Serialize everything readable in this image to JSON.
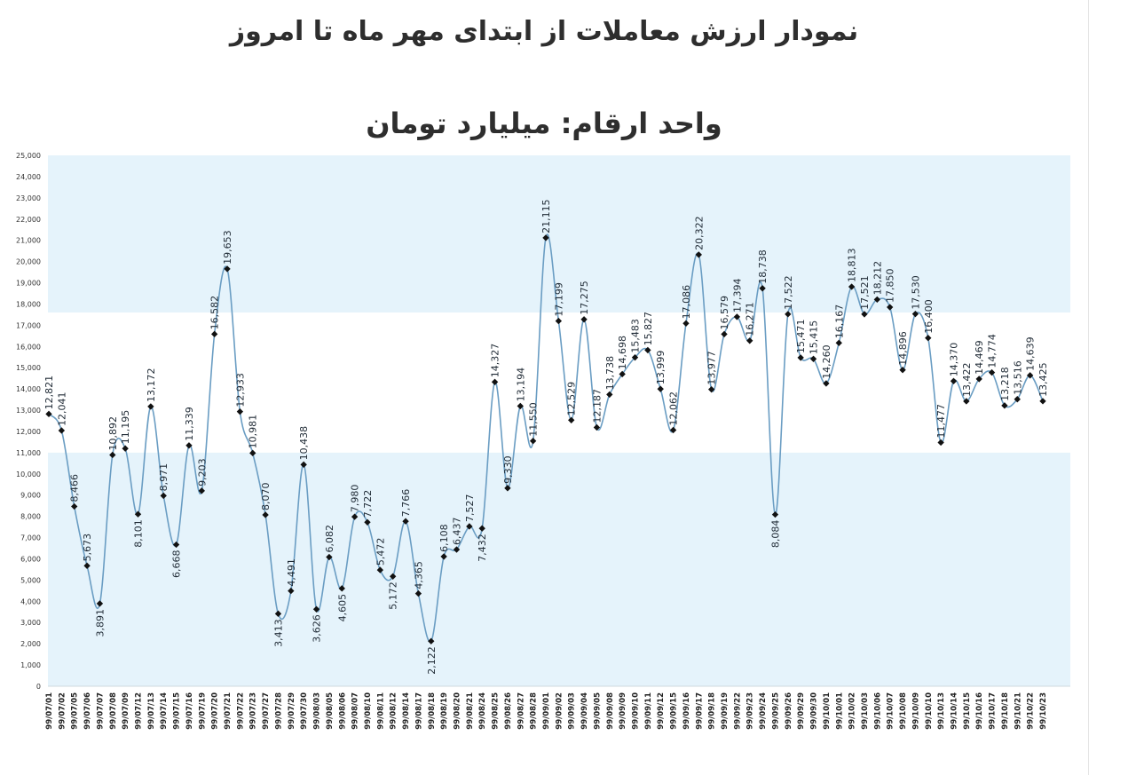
{
  "title": "نمودار ارزش معاملات از ابتدای مهر ماه تا امروز",
  "subtitle": "واحد ارقام: میلیارد تومان",
  "colors": {
    "line": "#6a9dc3",
    "marker": "#111111",
    "band": "#e5f3fb",
    "background": "#ffffff"
  },
  "chart_data": {
    "type": "line",
    "title": "نمودار ارزش معاملات از ابتدای مهر ماه تا امروز",
    "unit": "واحد ارقام: میلیارد تومان",
    "ylim": [
      0,
      25000
    ],
    "ytick_step": 1000,
    "ytick_labels": [
      "0",
      "1,000",
      "2,000",
      "3,000",
      "4,000",
      "5,000",
      "6,000",
      "7,000",
      "8,000",
      "9,000",
      "10,000",
      "11,000",
      "12,000",
      "13,000",
      "14,000",
      "15,000",
      "16,000",
      "17,000",
      "18,000",
      "19,000",
      "20,000",
      "21,000",
      "22,000",
      "23,000",
      "24,000",
      "25,000"
    ],
    "shaded_bands": [
      [
        0,
        11000
      ],
      [
        17600,
        25000
      ]
    ],
    "categories": [
      "99/07/01",
      "99/07/02",
      "99/07/05",
      "99/07/06",
      "99/07/07",
      "99/07/08",
      "99/07/09",
      "99/07/12",
      "99/07/13",
      "99/07/14",
      "99/07/15",
      "99/07/16",
      "99/07/19",
      "99/07/20",
      "99/07/21",
      "99/07/22",
      "99/07/23",
      "99/07/27",
      "99/07/28",
      "99/07/29",
      "99/07/30",
      "99/08/03",
      "99/08/05",
      "99/08/06",
      "99/08/07",
      "99/08/10",
      "99/08/11",
      "99/08/12",
      "99/08/14",
      "99/08/17",
      "99/08/18",
      "99/08/19",
      "99/08/20",
      "99/08/21",
      "99/08/24",
      "99/08/25",
      "99/08/26",
      "99/08/27",
      "99/08/28",
      "99/09/01",
      "99/09/02",
      "99/09/03",
      "99/09/04",
      "99/09/05",
      "99/09/08",
      "99/09/09",
      "99/09/10",
      "99/09/11",
      "99/09/12",
      "99/09/15",
      "99/09/16",
      "99/09/17",
      "99/09/18",
      "99/09/19",
      "99/09/22",
      "99/09/23",
      "99/09/24",
      "99/09/25",
      "99/09/26",
      "99/09/29",
      "99/09/30",
      "99/10/01",
      "99/10/01",
      "99/10/02",
      "99/10/03",
      "99/10/06",
      "99/10/07",
      "99/10/08",
      "99/10/09",
      "99/10/10",
      "99/10/13",
      "99/10/14",
      "99/10/15",
      "99/10/16",
      "99/10/17",
      "99/10/18",
      "99/10/21",
      "99/10/22",
      "99/10/23"
    ],
    "values": [
      12821,
      12041,
      8466,
      5673,
      3891,
      10892,
      11195,
      8101,
      13172,
      8971,
      6668,
      11339,
      9203,
      16582,
      19653,
      12933,
      10981,
      8070,
      3413,
      4491,
      10438,
      3626,
      6082,
      4605,
      7980,
      7722,
      5472,
      5172,
      7766,
      4365,
      2122,
      6108,
      6437,
      7527,
      7432,
      14327,
      9330,
      13194,
      11550,
      21115,
      17199,
      12529,
      17275,
      12187,
      13738,
      14698,
      15483,
      15827,
      13999,
      12062,
      17086,
      20322,
      13977,
      16579,
      17394,
      16271,
      18738,
      8084,
      17522,
      15471,
      15415,
      14260,
      16167,
      18813,
      17521,
      18212,
      17850,
      14896,
      17530,
      16400,
      11477,
      14370,
      13422,
      14469,
      14774,
      13218,
      13516,
      14639,
      13425
    ],
    "labels": [
      "12,821",
      "12,041",
      "8,466",
      "5,673",
      "3,891",
      "10,892",
      "11,195",
      "8,101",
      "13,172",
      "8,971",
      "6,668",
      "11,339",
      "9,203",
      "16,582",
      "19,653",
      "12,933",
      "10,981",
      "8,070",
      "3,413",
      "4,491",
      "10,438",
      "3,626",
      "6,082",
      "4,605",
      "7,980",
      "7,722",
      "5,472",
      "5,172",
      "7,766",
      "4,365",
      "2,122",
      "6,108",
      "6,437",
      "7,527",
      "7,432",
      "14,327",
      "9,330",
      "13,194",
      "11,550",
      "21,115",
      "17,199",
      "12,529",
      "17,275",
      "12,187",
      "13,738",
      "14,698",
      "15,483",
      "15,827",
      "13,999",
      "12,062",
      "17,086",
      "20,322",
      "13,977",
      "16,579",
      "17,394",
      "16,271",
      "18,738",
      "8,084",
      "17,522",
      "15,471",
      "15,415",
      "14,260",
      "16,167",
      "18,813",
      "17,521",
      "18,212",
      "17,850",
      "14,896",
      "17,530",
      "16,400",
      "11,477",
      "14,370",
      "13,422",
      "14,469",
      "14,774",
      "13,218",
      "13,516",
      "14,639",
      "13,425"
    ]
  }
}
